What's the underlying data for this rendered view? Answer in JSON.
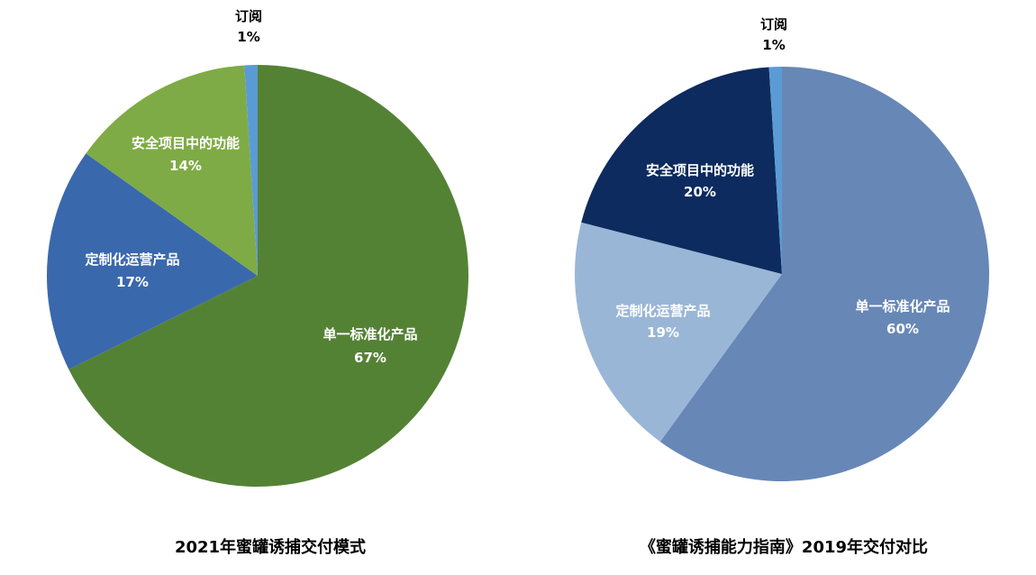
{
  "chart_data": [
    {
      "type": "pie",
      "title": "2021年蜜罐诱捕交付模式",
      "slices": [
        {
          "label": "单一标准化产品",
          "value": 67,
          "display": "67%",
          "color": "#548235"
        },
        {
          "label": "定制化运营产品",
          "value": 17,
          "display": "17%",
          "color": "#3a68ad"
        },
        {
          "label": "安全项目中的功能",
          "value": 14,
          "display": "14%",
          "color": "#7eab45"
        },
        {
          "label": "订阅",
          "value": 1,
          "display": "1%",
          "color": "#5b9bd5"
        }
      ]
    },
    {
      "type": "pie",
      "title": "《蜜罐诱捕能力指南》2019年交付对比",
      "slices": [
        {
          "label": "单一标准化产品",
          "value": 60,
          "display": "60%",
          "color": "#6787b6"
        },
        {
          "label": "定制化运营产品",
          "value": 19,
          "display": "19%",
          "color": "#9ab6d6"
        },
        {
          "label": "安全项目中的功能",
          "value": 20,
          "display": "20%",
          "color": "#0d2b5e"
        },
        {
          "label": "订阅",
          "value": 1,
          "display": "1%",
          "color": "#5b9bd5"
        }
      ]
    }
  ]
}
